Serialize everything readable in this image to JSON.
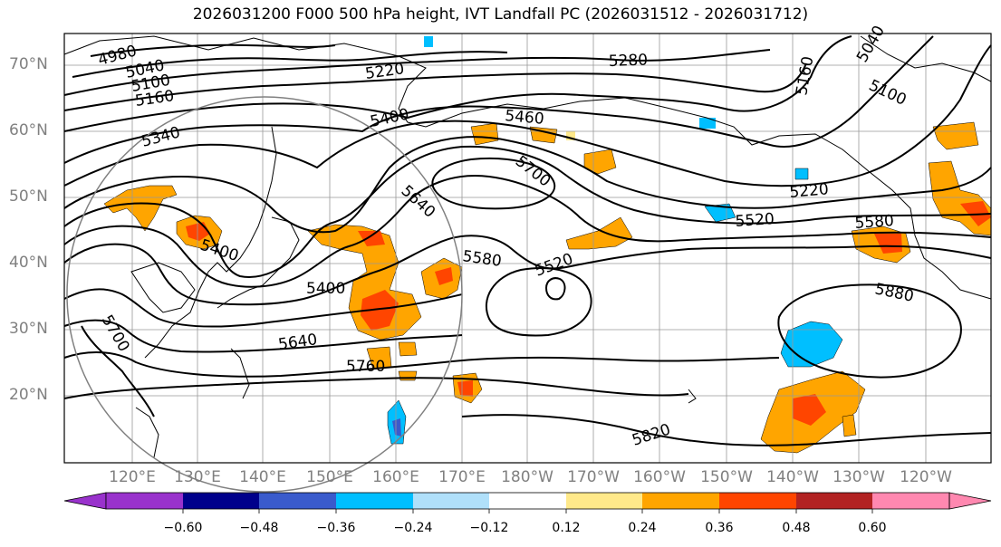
{
  "title": "2026031200 F000 500 hPa height, IVT Landfall PC (2026031512 - 2026031712)",
  "lat_labels": [
    "70°N",
    "60°N",
    "50°N",
    "40°N",
    "30°N",
    "20°N"
  ],
  "lon_labels": [
    "120°E",
    "130°E",
    "140°E",
    "150°E",
    "160°E",
    "170°E",
    "180°W",
    "170°W",
    "160°W",
    "150°W",
    "140°W",
    "130°W",
    "120°W"
  ],
  "contour_labels": [
    "4980",
    "5040",
    "5100",
    "5160",
    "5220",
    "5280",
    "5040",
    "5100",
    "5160",
    "5340",
    "5400",
    "5460",
    "5700",
    "5640",
    "5220",
    "5400",
    "5580",
    "5520",
    "5520",
    "5580",
    "5400",
    "5640",
    "5760",
    "5700",
    "5880",
    "5820"
  ],
  "colorbar": {
    "ticks": [
      "−0.60",
      "−0.48",
      "−0.36",
      "−0.24",
      "−0.12",
      "0.12",
      "0.24",
      "0.36",
      "0.48",
      "0.60"
    ],
    "colors": [
      "#9932cc",
      "#00008b",
      "#3a5bcc",
      "#00bfff",
      "#b0e0fa",
      "#ffffff",
      "#ffffff",
      "#ffe98a",
      "#ffa500",
      "#ff4500",
      "#b22222",
      "#ff88b0"
    ]
  }
}
